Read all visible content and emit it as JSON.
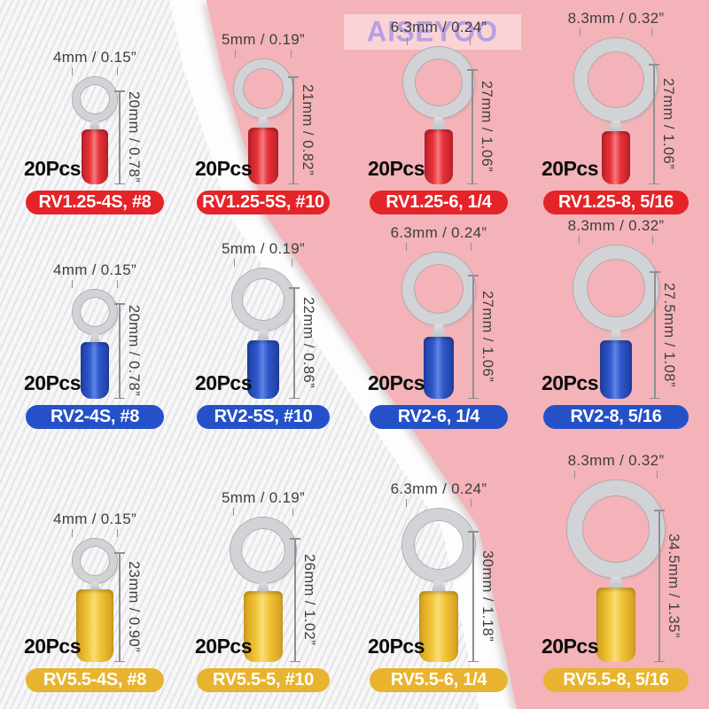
{
  "watermark": {
    "text": "AISEYOO",
    "color": "#ae97e2"
  },
  "background": {
    "pink": "#f4b3b8",
    "stripe_base": "#f7f7f8",
    "stripe_line": "#e4e4e8",
    "white_sheet": "#fdfdfe"
  },
  "rows": [
    {
      "name": "red",
      "colors": {
        "sleeve": "#e7313a",
        "sleeve_dark": "#bb2029",
        "sleeve_light": "#f47c7e",
        "pill": "#e42428"
      },
      "cells": [
        {
          "width_label": "4mm / 0.15”",
          "height_label": "20mm / 0.78”",
          "qty": "20Pcs",
          "model": "RV1.25-4S, #8"
        },
        {
          "width_label": "5mm / 0.19”",
          "height_label": "21mm / 0.82”",
          "qty": "20Pcs",
          "model": "RV1.25-5S, #10"
        },
        {
          "width_label": "6.3mm / 0.24”",
          "height_label": "27mm / 1.06”",
          "qty": "20Pcs",
          "model": "RV1.25-6, 1/4"
        },
        {
          "width_label": "8.3mm / 0.32”",
          "height_label": "27mm / 1.06”",
          "qty": "20Pcs",
          "model": "RV1.25-8, 5/16"
        }
      ]
    },
    {
      "name": "blue",
      "colors": {
        "sleeve": "#2e57c9",
        "sleeve_dark": "#1e3da0",
        "sleeve_light": "#5f85e6",
        "pill": "#2551c8"
      },
      "cells": [
        {
          "width_label": "4mm / 0.15”",
          "height_label": "20mm / 0.78”",
          "qty": "20Pcs",
          "model": "RV2-4S, #8"
        },
        {
          "width_label": "5mm / 0.19”",
          "height_label": "22mm / 0.86”",
          "qty": "20Pcs",
          "model": "RV2-5S, #10"
        },
        {
          "width_label": "6.3mm / 0.24”",
          "height_label": "27mm / 1.06”",
          "qty": "20Pcs",
          "model": "RV2-6, 1/4"
        },
        {
          "width_label": "8.3mm / 0.32”",
          "height_label": "27.5mm / 1.08”",
          "qty": "20Pcs",
          "model": "RV2-8, 5/16"
        }
      ]
    },
    {
      "name": "yellow",
      "colors": {
        "sleeve": "#f1c335",
        "sleeve_dark": "#d29d1e",
        "sleeve_light": "#f9dd76",
        "pill": "#e8b32e"
      },
      "cells": [
        {
          "width_label": "4mm / 0.15”",
          "height_label": "23mm / 0.90”",
          "qty": "20Pcs",
          "model": "RV5.5-4S, #8"
        },
        {
          "width_label": "5mm / 0.19”",
          "height_label": "26mm / 1.02”",
          "qty": "20Pcs",
          "model": "RV5.5-5, #10"
        },
        {
          "width_label": "6.3mm / 0.24”",
          "height_label": "30mm / 1.18”",
          "qty": "20Pcs",
          "model": "RV5.5-6, 1/4"
        },
        {
          "width_label": "8.3mm / 0.32”",
          "height_label": "34.5mm / 1.35”",
          "qty": "20Pcs",
          "model": "RV5.5-8, 5/16"
        }
      ]
    }
  ]
}
